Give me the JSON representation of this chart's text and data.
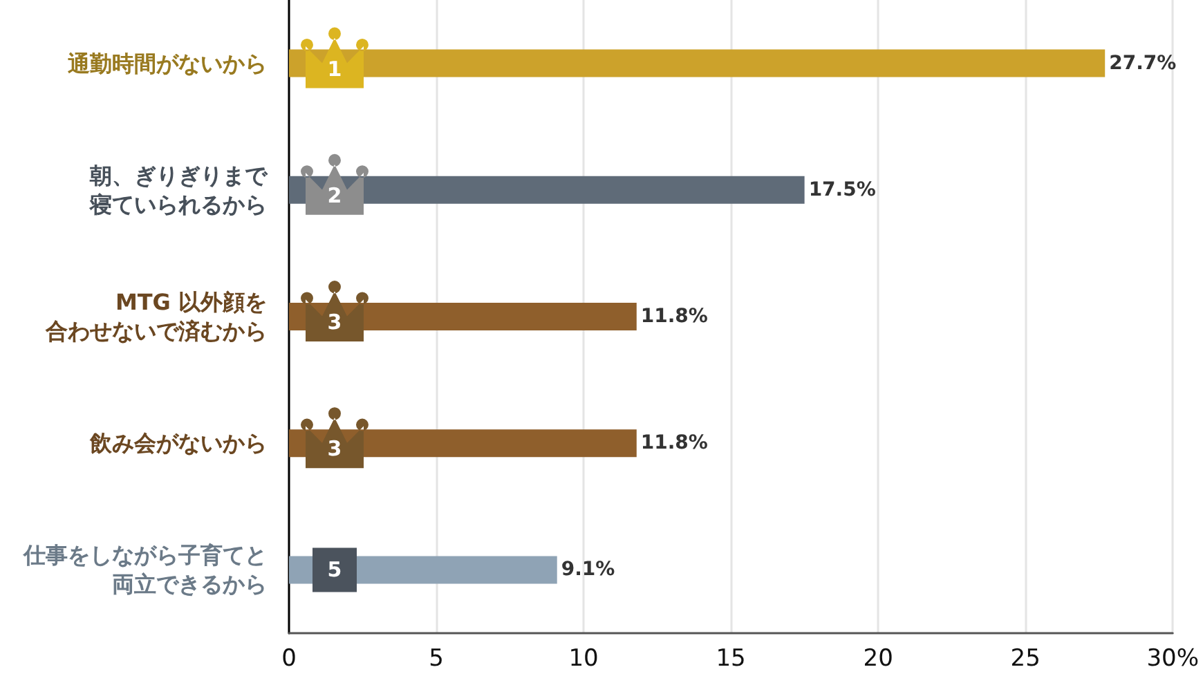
{
  "chart_data": {
    "type": "bar",
    "orientation": "horizontal",
    "categories": [
      "通勤時間がないから",
      "朝、ぎりぎりまで寝ていられるから",
      "MTG 以外顔を合わせないで済むから",
      "飲み会がないから",
      "仕事をしながら子育てと両立できるから"
    ],
    "values": [
      27.7,
      17.5,
      11.8,
      11.8,
      9.1
    ],
    "colors": [
      "#cca22b",
      "#5f6b78",
      "#8f5f2c",
      "#8f5f2c",
      "#8fa3b5"
    ],
    "value_labels": [
      "27.7%",
      "17.5%",
      "11.8%",
      "11.8%",
      "9.1%"
    ],
    "xlim": [
      0,
      30
    ],
    "xticks": [
      0,
      5,
      10,
      15,
      20,
      25,
      {
        "value": 30,
        "label": "30%"
      }
    ],
    "grid": "x",
    "annotations": [
      "1",
      "2",
      "3",
      "3",
      "5"
    ]
  }
}
